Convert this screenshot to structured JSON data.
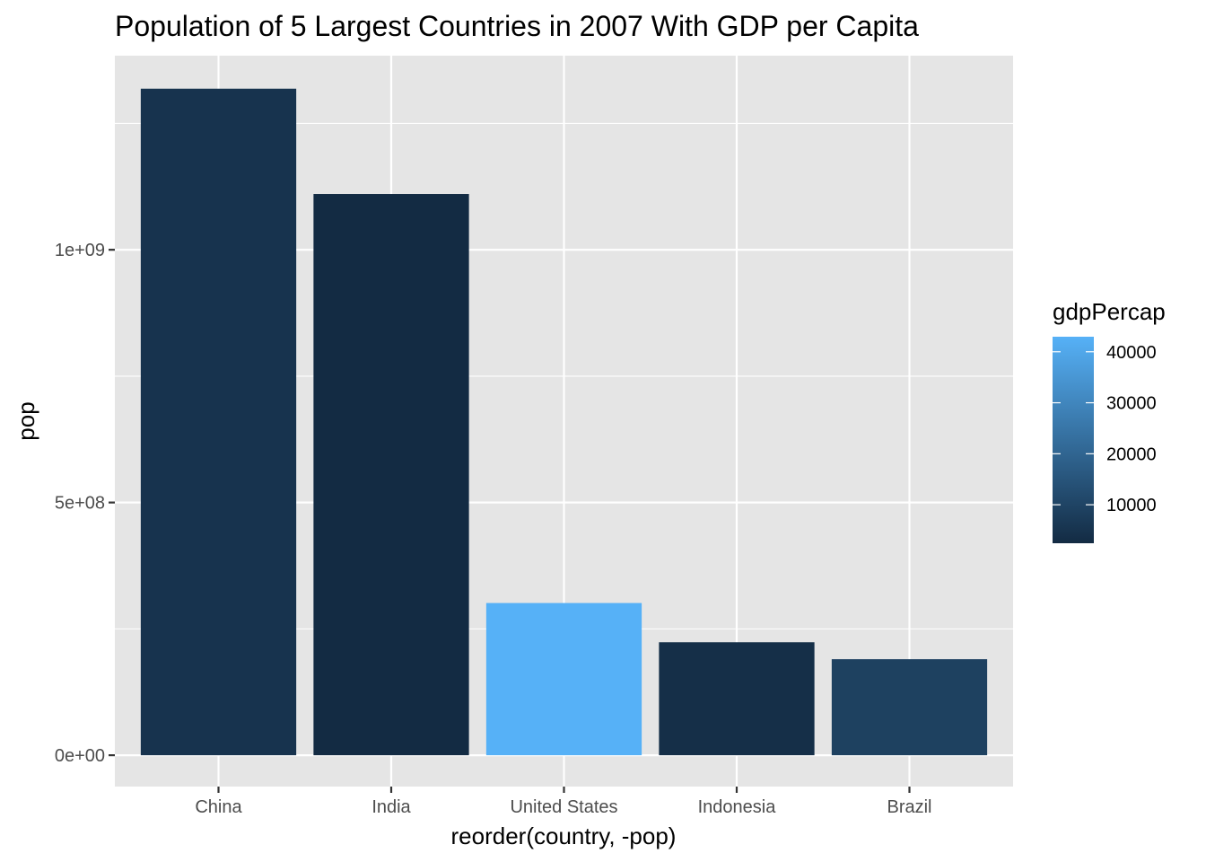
{
  "chart_data": {
    "type": "bar",
    "title": "Population of 5 Largest Countries in 2007 With GDP per Capita",
    "xlabel": "reorder(country, -pop)",
    "ylabel": "pop",
    "categories": [
      "China",
      "India",
      "United States",
      "Indonesia",
      "Brazil"
    ],
    "values": [
      1318683096,
      1110396331,
      301139947,
      223547000,
      190010647
    ],
    "fill_values": [
      4959.114854,
      2452.210407,
      42951.65309,
      3540.651564,
      9065.800825
    ],
    "ylim": [
      -62000000,
      1384000000
    ],
    "yticks": [
      0,
      500000000,
      1000000000
    ],
    "ytick_labels": [
      "0e+00",
      "5e+08",
      "1e+09"
    ],
    "grid": true,
    "legend": {
      "title": "gdpPercap",
      "position": "right",
      "type": "colorbar",
      "range": [
        2452.210407,
        42951.65309
      ],
      "breaks": [
        10000,
        20000,
        30000,
        40000
      ],
      "break_labels": [
        "10000",
        "20000",
        "30000",
        "40000"
      ],
      "low_color": "#132B43",
      "high_color": "#56B1F7"
    },
    "colors": {
      "panel_background": "#e5e5e5",
      "grid": "#ffffff",
      "tick": "#333333",
      "tick_label": "#4d4d4d"
    }
  }
}
